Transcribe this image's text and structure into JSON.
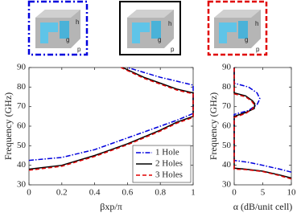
{
  "insets": [
    {
      "labels": [
        "h",
        "g",
        "p"
      ]
    },
    {
      "labels": [
        "h",
        "g",
        "p"
      ]
    },
    {
      "labels": [
        "h",
        "g",
        "p"
      ]
    }
  ],
  "chart_data": [
    {
      "type": "line",
      "xlabel": "βxp/π",
      "ylabel": "Frequency (GHz)",
      "xlim": [
        0,
        1
      ],
      "ylim": [
        30,
        90
      ],
      "xticks": [
        0,
        0.2,
        0.4,
        0.6,
        0.8,
        1
      ],
      "yticks": [
        30,
        40,
        50,
        60,
        70,
        80,
        90
      ],
      "legend": "lower right",
      "series": [
        {
          "name": "1 Hole",
          "color": "#0000dd",
          "dash": "dashdot",
          "x": [
            0,
            0.2,
            0.4,
            0.6,
            0.8,
            0.9,
            1,
            1,
            0.95,
            0.9,
            0.8,
            0.7,
            0.6
          ],
          "values": [
            42.5,
            44,
            48,
            54,
            60,
            63,
            66.5,
            81,
            82,
            83,
            85,
            87.5,
            90
          ]
        },
        {
          "name": "2 Holes",
          "color": "#000000",
          "dash": "solid",
          "x": [
            0,
            0.2,
            0.4,
            0.6,
            0.8,
            0.9,
            1,
            1,
            0.9,
            0.8,
            0.7,
            0.57
          ],
          "values": [
            38,
            40,
            45,
            51,
            58,
            62,
            65,
            77,
            79,
            82,
            85,
            90
          ]
        },
        {
          "name": "3 Holes",
          "color": "#e00000",
          "dash": "dashed",
          "x": [
            0,
            0.2,
            0.4,
            0.6,
            0.8,
            0.9,
            1,
            1,
            0.9,
            0.8,
            0.7,
            0.56
          ],
          "values": [
            37.5,
            39.5,
            44.5,
            50.5,
            57.5,
            61.5,
            64.5,
            76.5,
            78.5,
            81.5,
            84.5,
            90
          ]
        }
      ]
    },
    {
      "type": "line",
      "xlabel": "α (dB/unit cell)",
      "ylabel": "Frequency (GHz)",
      "xlim": [
        0,
        10
      ],
      "ylim": [
        30,
        90
      ],
      "xticks": [
        0,
        5,
        10
      ],
      "yticks": [
        30,
        40,
        50,
        60,
        70,
        80,
        90
      ],
      "series": [
        {
          "color": "#0000dd",
          "dash": "dashdot",
          "x": [
            10,
            8,
            5,
            2.5,
            0,
            0,
            2.5,
            4,
            4.5,
            4,
            2.5,
            0,
            0
          ],
          "values": [
            36.5,
            38,
            40,
            41.5,
            42.5,
            66,
            68,
            71,
            74,
            77,
            80,
            82,
            90
          ]
        },
        {
          "color": "#000000",
          "dash": "solid",
          "x": [
            10,
            8,
            5,
            2,
            0,
            0,
            2,
            3.5,
            3.6,
            3.2,
            2,
            0,
            0
          ],
          "values": [
            33.5,
            35,
            37,
            38,
            38.5,
            65,
            67,
            69,
            71.5,
            73,
            75.5,
            77,
            90
          ]
        },
        {
          "color": "#e00000",
          "dash": "dashed",
          "x": [
            10,
            8,
            5,
            2,
            0,
            0,
            2,
            3.3,
            3.4,
            3,
            2,
            0,
            0
          ],
          "values": [
            33,
            34.7,
            36.8,
            37.8,
            38,
            64.5,
            66.5,
            69,
            71.5,
            73,
            75,
            76.5,
            90
          ]
        }
      ]
    }
  ]
}
